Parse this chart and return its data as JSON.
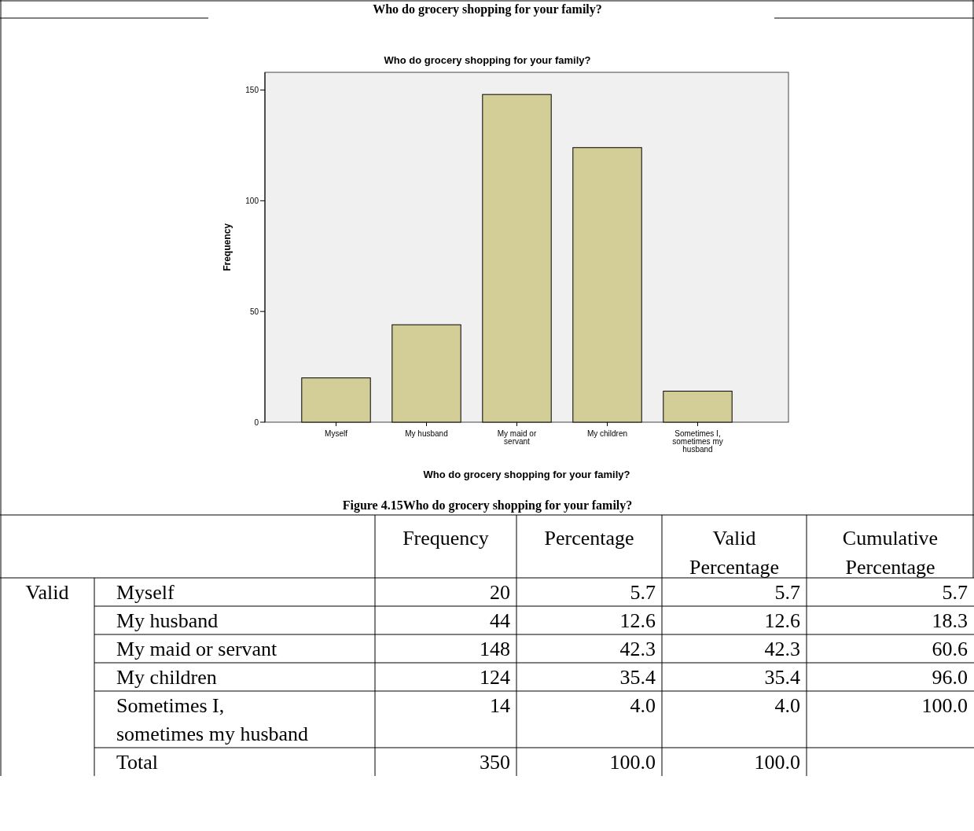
{
  "chart_data": [
    {
      "type": "bar",
      "title": "Who do grocery shopping for your family?",
      "xlabel": "Who do grocery shopping for your family?",
      "ylabel": "Frequency",
      "categories": [
        "Myself",
        "My husband",
        "My maid or servant",
        "My children",
        "Sometimes I, sometimes my husband"
      ],
      "values": [
        20,
        44,
        148,
        124,
        14
      ],
      "color": "#d3ce97",
      "ylim": [
        0,
        158
      ],
      "yticks": [
        0,
        50,
        100,
        150
      ],
      "grid": false,
      "annotations": [
        "Who do grocery shopping for your family?",
        "Figure 4.15Who do grocery shopping for your family?"
      ]
    },
    {
      "type": "other",
      "categories": [
        "Myself",
        "My husband",
        "My maid or servant",
        "My children",
        "Sometimes I, sometimes my husband",
        "Total"
      ],
      "series": [
        {
          "name": "Frequency",
          "values": [
            20,
            44,
            148,
            124,
            14,
            350
          ],
          "value_labels": [
            "20",
            "44",
            "148",
            "124",
            "14",
            "350"
          ]
        },
        {
          "name": "Percentage",
          "values": [
            5.7,
            12.6,
            42.3,
            35.4,
            4.0,
            100.0
          ],
          "value_labels": [
            "5.7",
            "12.6",
            "42.3",
            "35.4",
            "4.0",
            "100.0"
          ]
        },
        {
          "name": "Valid Percentage",
          "values": [
            5.7,
            12.6,
            42.3,
            35.4,
            4.0,
            100.0
          ],
          "value_labels": [
            "5.7",
            "12.6",
            "42.3",
            "35.4",
            "4.0",
            "100.0"
          ]
        },
        {
          "name": "Cumulative Percentage",
          "values": [
            5.7,
            18.3,
            60.6,
            96.0,
            100.0,
            null
          ],
          "value_labels": [
            "5.7",
            "18.3",
            "60.6",
            "96.0",
            "100.0",
            null
          ]
        }
      ],
      "annotations": [
        "Valid"
      ]
    }
  ]
}
